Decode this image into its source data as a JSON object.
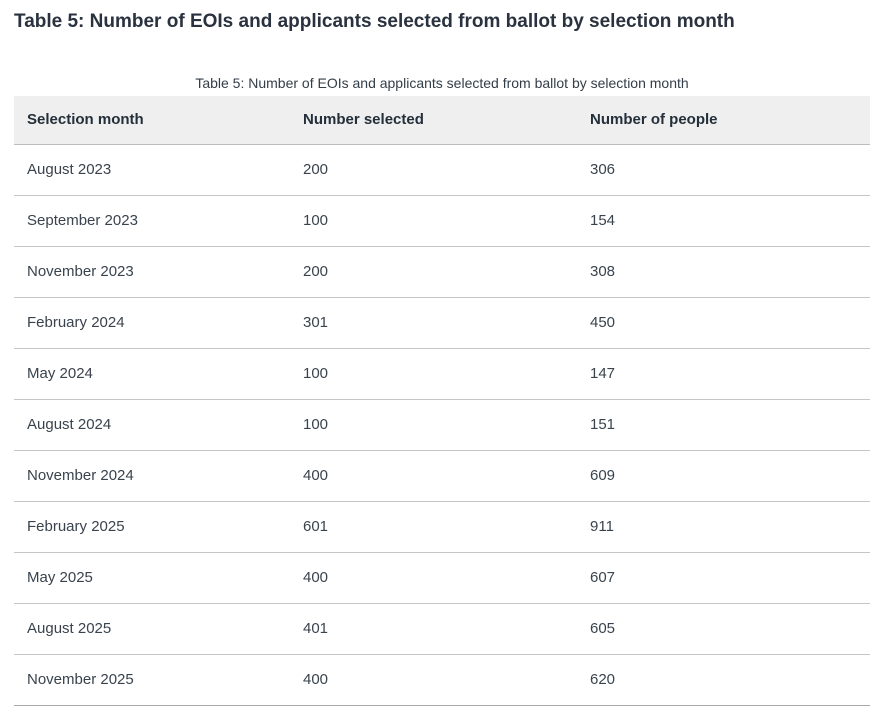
{
  "page": {
    "heading": "Table 5: Number of EOIs and applicants selected from ballot by selection month"
  },
  "chart_data": {
    "type": "table",
    "title": "Table 5: Number of EOIs and applicants selected from ballot by selection month",
    "columns": [
      "Selection month",
      "Number selected",
      "Number of people"
    ],
    "rows": [
      [
        "August 2023",
        "200",
        "306"
      ],
      [
        "September 2023",
        "100",
        "154"
      ],
      [
        "November 2023",
        "200",
        "308"
      ],
      [
        "February 2024",
        "301",
        "450"
      ],
      [
        "May 2024",
        "100",
        "147"
      ],
      [
        "August 2024",
        "100",
        "151"
      ],
      [
        "November 2024",
        "400",
        "609"
      ],
      [
        "February 2025",
        "601",
        "911"
      ],
      [
        "May 2025",
        "400",
        "607"
      ],
      [
        "August 2025",
        "401",
        "605"
      ],
      [
        "November 2025",
        "400",
        "620"
      ]
    ],
    "categories": [
      "August 2023",
      "September 2023",
      "November 2023",
      "February 2024",
      "May 2024",
      "August 2024",
      "November 2024",
      "February 2025",
      "May 2025",
      "August 2025",
      "November 2025"
    ],
    "series": [
      {
        "name": "Number selected",
        "values": [
          200,
          100,
          200,
          301,
          100,
          100,
          400,
          601,
          400,
          401,
          400
        ]
      },
      {
        "name": "Number of people",
        "values": [
          306,
          154,
          308,
          450,
          147,
          151,
          609,
          911,
          607,
          605,
          620
        ]
      }
    ]
  },
  "colors": {
    "heading_text": "#29323e",
    "body_text": "#39434d",
    "header_background": "#efefef",
    "row_border": "#c6c6c6",
    "table_bottom_border": "#a8a8a8"
  }
}
